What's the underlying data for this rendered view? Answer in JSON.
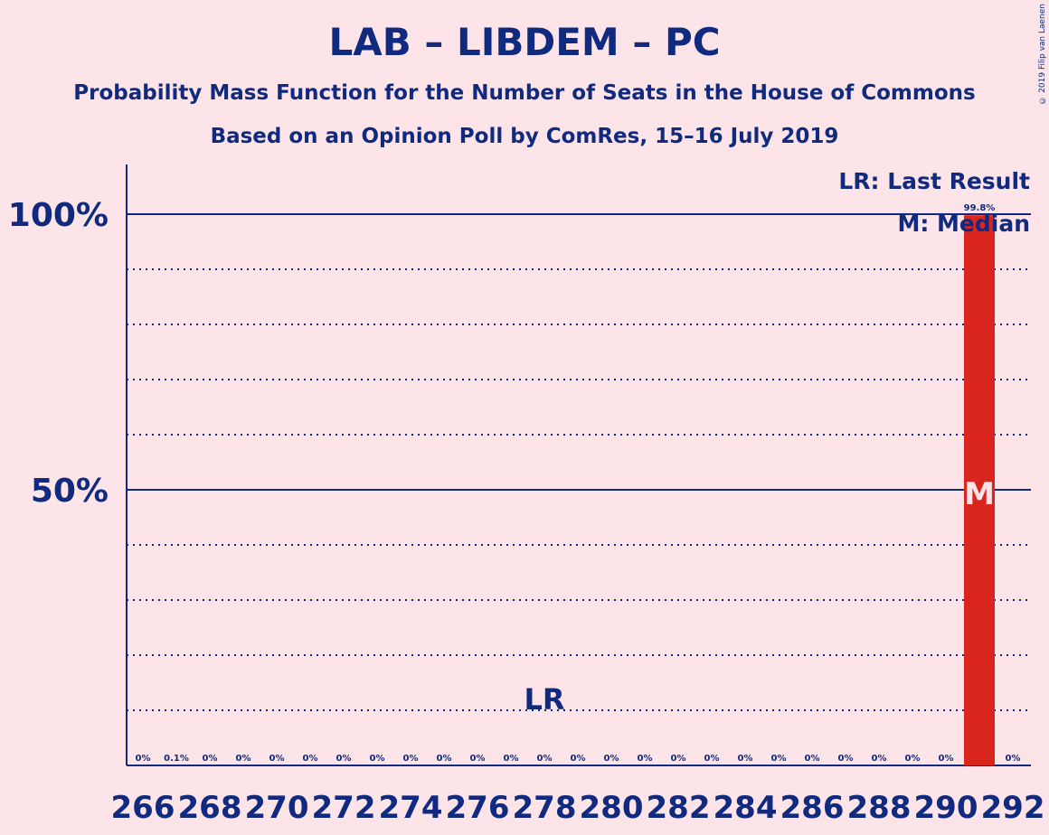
{
  "title": "LAB – LIBDEM – PC",
  "subtitle": "Probability Mass Function for the Number of Seats in the House of Commons",
  "subtitle2": "Based on an Opinion Poll by ComRes, 15–16 July 2019",
  "copyright": "© 2019 Filip van Laenen",
  "legend": {
    "last_result": "LR: Last Result",
    "median": "M: Median"
  },
  "colors": {
    "background": "#fde4e8",
    "text": "#0f2a7e",
    "bar": "#d9251d",
    "median_mark": "#fde4e8"
  },
  "chart_data": {
    "type": "bar",
    "x": [
      266,
      267,
      268,
      269,
      270,
      271,
      272,
      273,
      274,
      275,
      276,
      277,
      278,
      279,
      280,
      281,
      282,
      283,
      284,
      285,
      286,
      287,
      288,
      289,
      290,
      291,
      292
    ],
    "values": [
      0,
      0.1,
      0,
      0,
      0,
      0,
      0,
      0,
      0,
      0,
      0,
      0,
      0,
      0,
      0,
      0,
      0,
      0,
      0,
      0,
      0,
      0,
      0,
      0,
      0,
      99.8,
      0
    ],
    "value_labels": [
      "0%",
      "0.1%",
      "0%",
      "0%",
      "0%",
      "0%",
      "0%",
      "0%",
      "0%",
      "0%",
      "0%",
      "0%",
      "0%",
      "0%",
      "0%",
      "0%",
      "0%",
      "0%",
      "0%",
      "0%",
      "0%",
      "0%",
      "0%",
      "0%",
      "0%",
      "99.8%",
      "0%"
    ],
    "x_tick_labels": [
      "266",
      "268",
      "270",
      "272",
      "274",
      "276",
      "278",
      "280",
      "282",
      "284",
      "286",
      "288",
      "290",
      "292"
    ],
    "y_tick_labels": [
      "50%",
      "100%"
    ],
    "y_ticks": [
      50,
      100
    ],
    "ylim": [
      0,
      100
    ],
    "grid": "dotted every 10%",
    "last_result_seat": 278,
    "last_result_label": "LR",
    "median_seat": 291,
    "median_label": "M"
  }
}
